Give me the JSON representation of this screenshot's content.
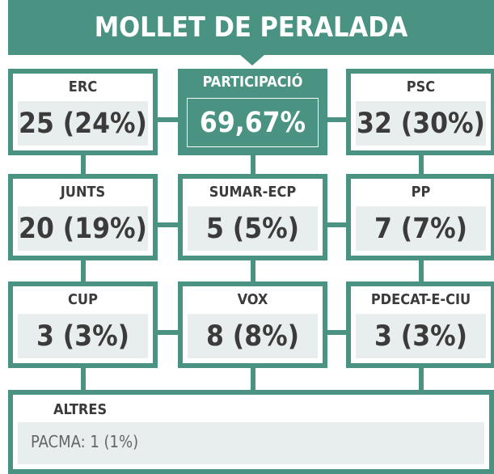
{
  "title": "MOLLET DE PERALADA",
  "participation": {
    "label": "PARTICIPACIÓ",
    "value": "69,67%"
  },
  "parties": [
    {
      "name": "ERC",
      "result": "25 (24%)"
    },
    {
      "name": "PSC",
      "result": "32 (30%)"
    },
    {
      "name": "JUNTS",
      "result": "20 (19%)"
    },
    {
      "name": "SUMAR-ECP",
      "result": "5 (5%)"
    },
    {
      "name": "PP",
      "result": "7 (7%)"
    },
    {
      "name": "CUP",
      "result": "3 (3%)"
    },
    {
      "name": "VOX",
      "result": "8 (8%)"
    },
    {
      "name": "PDECAT-E-CIU",
      "result": "3 (3%)"
    }
  ],
  "others": {
    "label": "ALTRES",
    "items": [
      "PACMA: 1 (1%)"
    ]
  }
}
